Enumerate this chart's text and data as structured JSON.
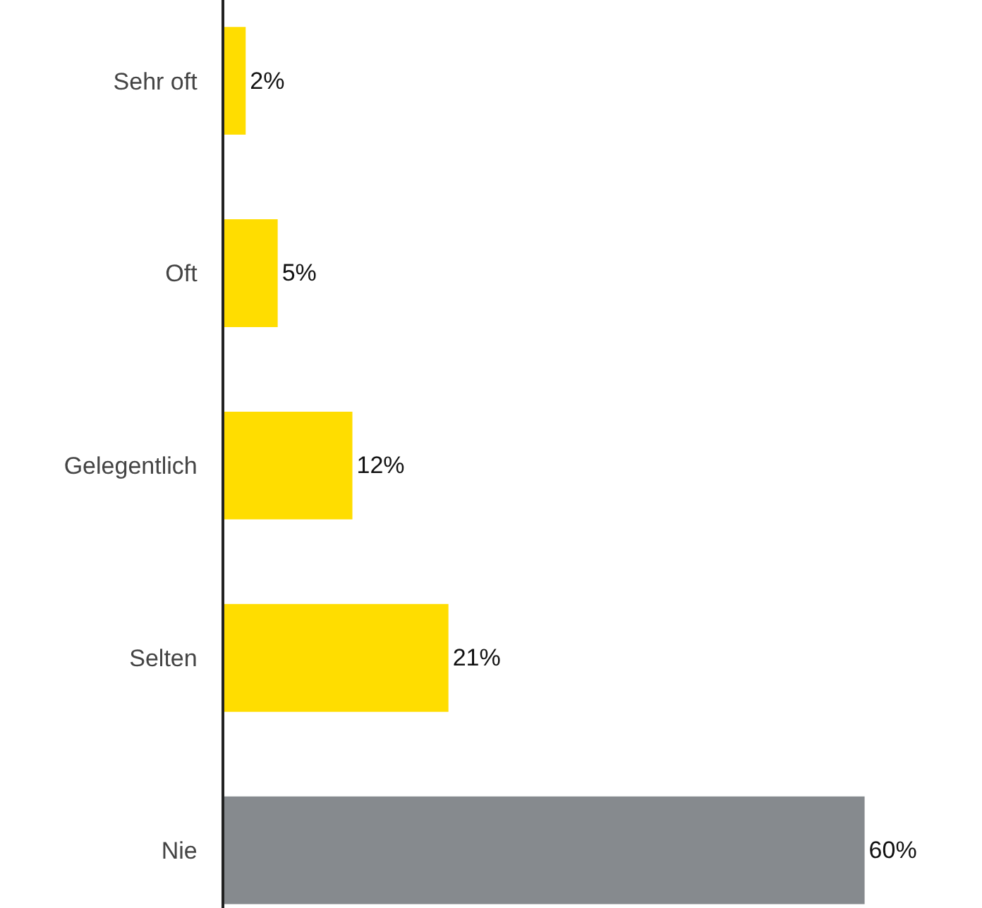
{
  "chart_data": {
    "type": "bar",
    "orientation": "horizontal",
    "categories": [
      "Sehr oft",
      "Oft",
      "Gelegentlich",
      "Selten",
      "Nie"
    ],
    "values": [
      2,
      5,
      12,
      21,
      60
    ],
    "colors": [
      "#ffdd00",
      "#ffdd00",
      "#ffdd00",
      "#ffdd00",
      "#868a8e"
    ],
    "value_labels": [
      "2%",
      "5%",
      "12%",
      "21%",
      "60%"
    ],
    "xlim": [
      0,
      71
    ],
    "tick_labels": "y"
  }
}
